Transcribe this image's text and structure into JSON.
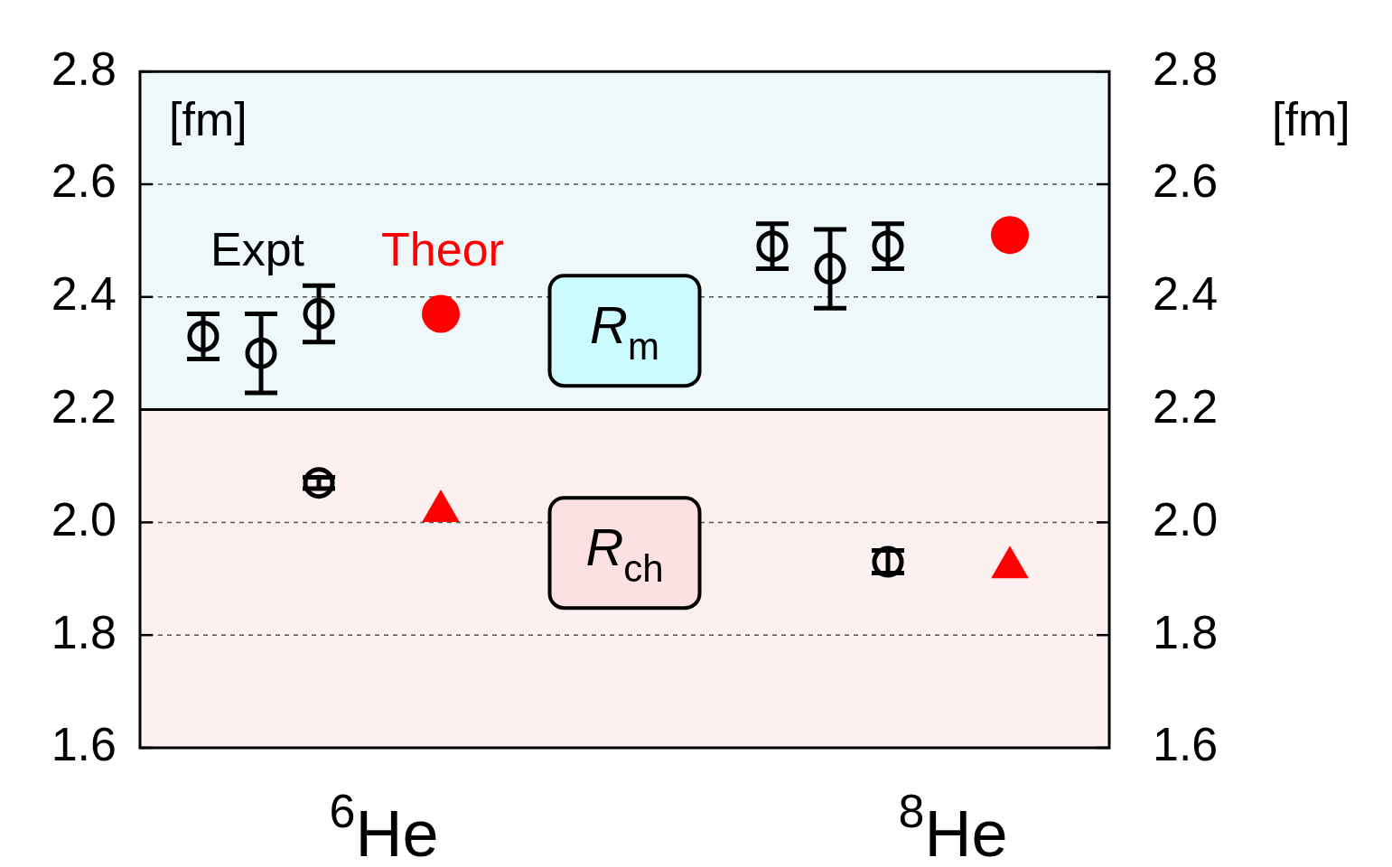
{
  "chart_data": {
    "type": "scatter",
    "ylabel": "[fm]",
    "y2label": "[fm]",
    "categories": [
      "$^{6}$He",
      "$^{8}$He"
    ],
    "ylim": [
      1.6,
      2.8
    ],
    "yticks": [
      1.6,
      1.8,
      {
        "value": 2,
        "label": "2.0"
      },
      2.2,
      2.4,
      2.6,
      2.8
    ],
    "y2lim": [
      1.6,
      2.8
    ],
    "y2ticks": [
      1.6,
      1.8,
      {
        "value": 2,
        "label": "2.0"
      },
      2.2,
      2.4,
      2.6,
      2.8
    ],
    "grid": "y",
    "legend": false,
    "ref_lines": [
      {
        "axis": "y",
        "value": 2.2,
        "color": "#000000",
        "line_style": "solid"
      }
    ],
    "bands": [
      {
        "axis": "y",
        "from": 2.2,
        "to": 2.8,
        "label": "R$_{m}$",
        "color": "#eef7f9"
      },
      {
        "axis": "y",
        "from": 1.6,
        "to": 2.2,
        "label": "R$_{ch}$",
        "color": "#fdf0f0"
      }
    ],
    "series": [
      {
        "name": "Expt",
        "color": "#000000",
        "marker": "circle",
        "x": [
          "$^{6}$He",
          "$^{6}$He",
          "$^{6}$He",
          "$^{8}$He",
          "$^{8}$He",
          "$^{8}$He"
        ],
        "values": [
          2.33,
          2.3,
          2.37,
          2.49,
          2.45,
          2.49
        ],
        "errors": [
          [
            2.29,
            2.37
          ],
          [
            2.23,
            2.37
          ],
          [
            2.32,
            2.42
          ],
          [
            2.45,
            2.53
          ],
          [
            2.38,
            2.52
          ],
          [
            2.45,
            2.53
          ]
        ]
      },
      {
        "color": "#000000",
        "marker": "circle",
        "x": [
          "$^{6}$He",
          "$^{8}$He"
        ],
        "values": [
          2.07,
          1.93
        ],
        "errors": [
          0.01,
          0.02
        ]
      },
      {
        "name": "Theor",
        "color": "#ff0000",
        "marker": "circle",
        "x": [
          "$^{6}$He",
          "$^{8}$He"
        ],
        "values": [
          2.37,
          2.51
        ]
      },
      {
        "color": "#ff0000",
        "marker": "triangle",
        "x": [
          "$^{6}$He",
          "$^{8}$He"
        ],
        "values": [
          2.02,
          1.92
        ]
      }
    ]
  }
}
